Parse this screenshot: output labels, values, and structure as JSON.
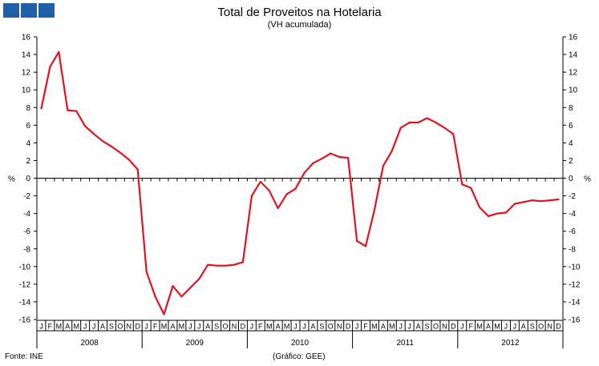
{
  "brand": {
    "color": "#1f5ea8"
  },
  "footer": {
    "source": "Fonte: INE",
    "credit": "(Gráfico: GEE)"
  },
  "chart_data": {
    "type": "line",
    "title": "Total de Proveitos na Hotelaria",
    "subtitle": "(VH acumulada)",
    "ylabel_left": "%",
    "ylabel_right": "%",
    "ylim": [
      -16,
      16
    ],
    "yticks": [
      16,
      14,
      12,
      10,
      8,
      6,
      4,
      2,
      0,
      -2,
      -4,
      -6,
      -8,
      -10,
      -12,
      -14,
      -16
    ],
    "month_labels": [
      "J",
      "F",
      "M",
      "A",
      "M",
      "J",
      "J",
      "A",
      "S",
      "O",
      "N",
      "D"
    ],
    "years": [
      "2008",
      "2009",
      "2010",
      "2011",
      "2012"
    ],
    "color": "#e0141e",
    "grid": false,
    "series": [
      {
        "values": [
          7.9,
          12.6,
          14.3,
          7.7,
          7.6,
          5.9,
          5.0,
          4.2,
          3.6,
          2.9,
          2.1,
          1.0,
          -10.6,
          -13.4,
          -15.4,
          -12.2,
          -13.4,
          -12.4,
          -11.4,
          -9.8,
          -9.9,
          -9.9,
          -9.8,
          -9.5,
          -2.0,
          -0.4,
          -1.4,
          -3.4,
          -1.8,
          -1.2,
          0.6,
          1.7,
          2.2,
          2.8,
          2.4,
          2.3,
          -7.1,
          -7.7,
          -3.6,
          1.4,
          3.1,
          5.7,
          6.3,
          6.3,
          6.8,
          6.3,
          5.7,
          5.0,
          -0.7,
          -1.1,
          -3.3,
          -4.3,
          -4.0,
          -3.9,
          -2.9,
          -2.7,
          -2.5,
          -2.6,
          -2.5,
          -2.4
        ]
      }
    ]
  }
}
